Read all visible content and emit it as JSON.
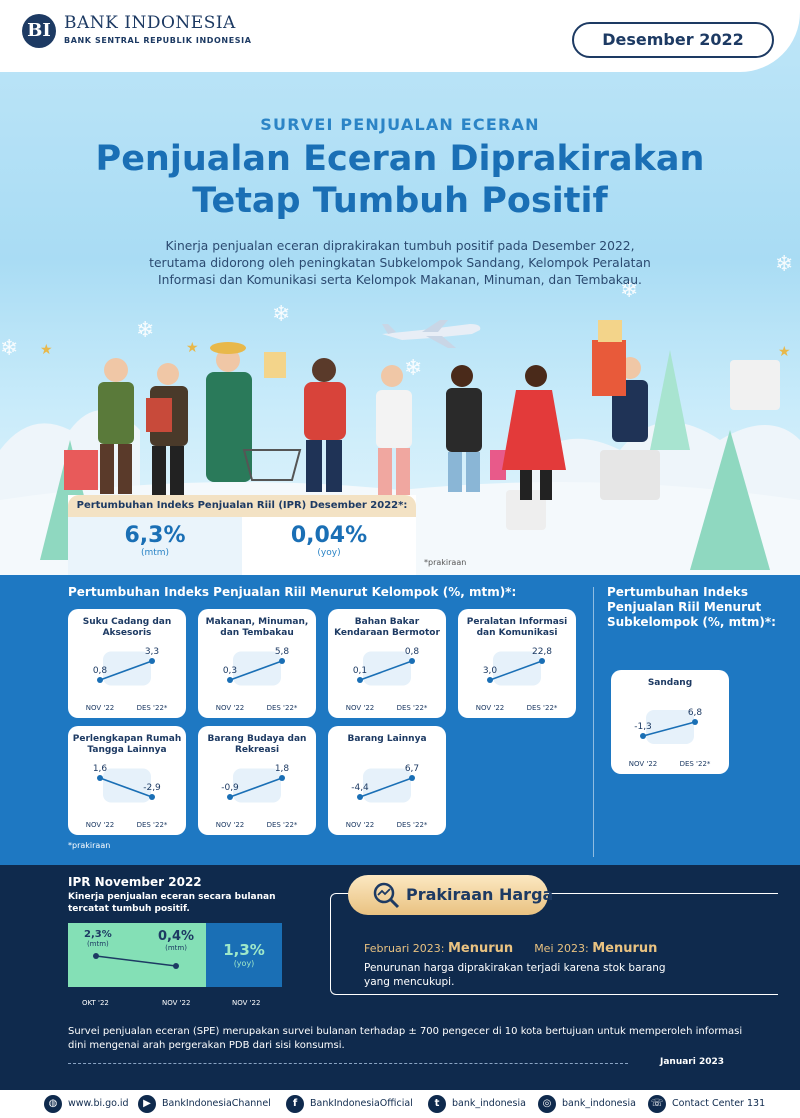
{
  "header": {
    "bank_name": "BANK INDONESIA",
    "bank_sub": "BANK SENTRAL REPUBLIK INDONESIA",
    "logo_mark": "BI",
    "date": "Desember 2022",
    "kicker": "SURVEI PENJUALAN ECERAN",
    "title_line1": "Penjualan Eceran Diprakirakan",
    "title_line2": "Tetap Tumbuh Positif",
    "lead": "Kinerja penjualan eceran diprakirakan tumbuh positif pada Desember 2022, terutama didorong oleh peningkatan Subkelompok Sandang, Kelompok Peralatan Informasi dan Komunikasi serta Kelompok Makanan, Minuman, dan Tembakau."
  },
  "ipr": {
    "head": "Pertumbuhan Indeks Penjualan Riil (IPR) Desember 2022*:",
    "mtm_value": "6,3%",
    "mtm_unit": "(mtm)",
    "yoy_value": "0,04%",
    "yoy_unit": "(yoy)",
    "note": "*prakiraan"
  },
  "groups": {
    "title": "Pertumbuhan Indeks Penjualan Riil Menurut Kelompok (%, mtm)*:",
    "x_labels": [
      "NOV '22",
      "DES '22*"
    ],
    "note": "*prakiraan",
    "cards": [
      {
        "title": "Suku Cadang dan Aksesoris",
        "nov": 0.8,
        "des": 3.3,
        "nov_label": "0,8",
        "des_label": "3,3",
        "icon": "car-icon"
      },
      {
        "title": "Makanan, Minuman, dan Tembakau",
        "nov": 0.3,
        "des": 5.8,
        "nov_label": "0,3",
        "des_label": "5,8",
        "icon": "utensils-icon"
      },
      {
        "title": "Bahan Bakar Kendaraan Bermotor",
        "nov": 0.1,
        "des": 0.8,
        "nov_label": "0,1",
        "des_label": "0,8",
        "icon": "fuel-nozzle-icon"
      },
      {
        "title": "Peralatan Informasi dan Komunikasi",
        "nov": 3.0,
        "des": 22.8,
        "nov_label": "3,0",
        "des_label": "22,8",
        "icon": "smartphone-icon"
      },
      {
        "title": "Perlengkapan Rumah Tangga Lainnya",
        "nov": 1.6,
        "des": -2.9,
        "nov_label": "1,6",
        "des_label": "-2,9",
        "icon": "plant-pot-icon"
      },
      {
        "title": "Barang Budaya dan Rekreasi",
        "nov": -0.9,
        "des": 1.8,
        "nov_label": "-0,9",
        "des_label": "1,8",
        "icon": "paint-icon"
      },
      {
        "title": "Barang Lainnya",
        "nov": -4.4,
        "des": 6.7,
        "nov_label": "-4,4",
        "des_label": "6,7",
        "icon": "shopping-bag-icon"
      }
    ]
  },
  "subgroup": {
    "title": "Pertumbuhan Indeks Penjualan Riil Menurut Subkelompok (%, mtm)*:",
    "card": {
      "title": "Sandang",
      "nov": -1.3,
      "des": 6.8,
      "nov_label": "-1,3",
      "des_label": "6,8",
      "icon": "tshirt-icon"
    }
  },
  "november": {
    "title": "IPR November 2022",
    "desc": "Kinerja penjualan eceran secara bulanan tercatat tumbuh positif.",
    "okt_value": "2,3%",
    "okt_unit": "(mtm)",
    "nov_value": "0,4%",
    "nov_unit": "(mtm)",
    "yoy_value": "1,3%",
    "yoy_unit": "(yoy)",
    "labels": [
      "OKT '22",
      "NOV '22",
      "NOV '22"
    ]
  },
  "prakiraan": {
    "title": "Prakiraan Harga",
    "feb_label": "Februari 2023:",
    "feb_value": "Menurun",
    "mei_label": "Mei 2023:",
    "mei_value": "Menurun",
    "desc": "Penurunan harga diprakirakan terjadi karena stok barang yang mencukupi."
  },
  "spe": {
    "text": "Survei penjualan eceran (SPE) merupakan survei bulanan terhadap ± 700 pengecer di 10 kota bertujuan untuk memperoleh informasi dini mengenai arah pergerakan PDB dari sisi konsumsi.",
    "issue": "Januari 2023"
  },
  "footer": [
    {
      "icon": "globe-icon",
      "text": "www.bi.go.id"
    },
    {
      "icon": "youtube-icon",
      "text": "BankIndonesiaChannel"
    },
    {
      "icon": "facebook-icon",
      "text": "BankIndonesiaOfficial"
    },
    {
      "icon": "twitter-icon",
      "text": "bank_indonesia"
    },
    {
      "icon": "instagram-icon",
      "text": "bank_indonesia"
    },
    {
      "icon": "phone-icon",
      "text": "Contact Center 131"
    }
  ],
  "colors": {
    "primary": "#1a6fb5",
    "navy": "#0f2a4d",
    "accent_gold": "#e9c281",
    "green": "#84e0b6"
  }
}
